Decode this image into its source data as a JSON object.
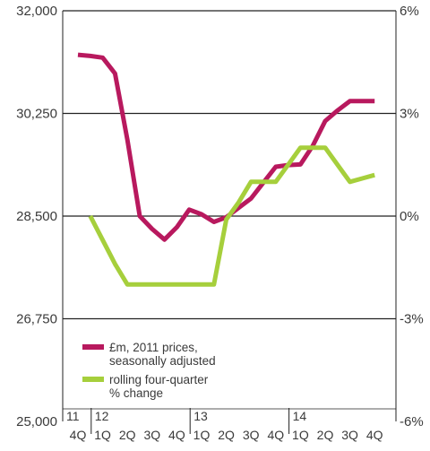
{
  "chart_data": {
    "type": "line",
    "categories": [
      "4Q",
      "1Q",
      "2Q",
      "3Q",
      "4Q",
      "1Q",
      "2Q",
      "3Q",
      "4Q",
      "1Q",
      "2Q",
      "3Q",
      "4Q"
    ],
    "year_labels": [
      {
        "label": "11",
        "start_index": 0
      },
      {
        "label": "12",
        "start_index": 1
      },
      {
        "label": "13",
        "start_index": 5
      },
      {
        "label": "14",
        "start_index": 9
      }
    ],
    "left_axis": {
      "ticks": [
        25000,
        26750,
        28500,
        30250,
        32000
      ],
      "tick_labels": [
        "25,000",
        "26,750",
        "28,500",
        "30,250",
        "32,000"
      ],
      "ylim": [
        25000,
        32000
      ]
    },
    "right_axis": {
      "ticks": [
        -6,
        -3,
        0,
        3,
        6
      ],
      "tick_labels": [
        "-6%",
        "-3%",
        "0%",
        "3%",
        "6%"
      ],
      "ylim": [
        -6,
        6
      ]
    },
    "gridlines": [
      28500,
      30250,
      32000
    ],
    "series": [
      {
        "name": "£m, 2011 prices, seasonally adjusted",
        "axis": "left",
        "color": "#b8195e",
        "x": [
          0,
          0.5,
          1,
          1.5,
          2,
          2.5,
          3,
          3.5,
          4,
          4.5,
          5,
          5.5,
          6,
          6.5,
          7,
          7.5,
          8,
          8.5,
          9,
          9.5,
          10,
          10.5,
          11,
          11.5,
          12
        ],
        "values": [
          31250,
          31230,
          31200,
          30930,
          29800,
          28500,
          28280,
          28100,
          28310,
          28610,
          28530,
          28400,
          28480,
          28640,
          28800,
          29070,
          29340,
          29370,
          29380,
          29700,
          30120,
          30300,
          30460,
          30460,
          30460
        ]
      },
      {
        "name": "rolling four-quarter % change",
        "axis": "right",
        "color": "#a6cf3c",
        "x": [
          0.5,
          1,
          1.5,
          2,
          2.5,
          3,
          3.5,
          4,
          4.5,
          5,
          5.5,
          6,
          6.5,
          7,
          7.5,
          8,
          8.5,
          9,
          9.5,
          10,
          10.5,
          11,
          11.5,
          12
        ],
        "values": [
          0,
          -0.7,
          -1.4,
          -2.0,
          -2.0,
          -2.0,
          -2.0,
          -2.0,
          -2.0,
          -2.0,
          -2.0,
          -0.1,
          0.4,
          1.0,
          1.0,
          1.0,
          1.5,
          2.0,
          2.0,
          2.0,
          1.5,
          1.0,
          1.1,
          1.2
        ]
      }
    ],
    "legend": {
      "placement": "bottom-left",
      "entries": [
        {
          "label_lines": [
            "£m, 2011 prices,",
            "seasonally adjusted"
          ],
          "color": "#b8195e"
        },
        {
          "label_lines": [
            "rolling four-quarter",
            "% change"
          ],
          "color": "#a6cf3c"
        }
      ]
    },
    "grid": true
  }
}
